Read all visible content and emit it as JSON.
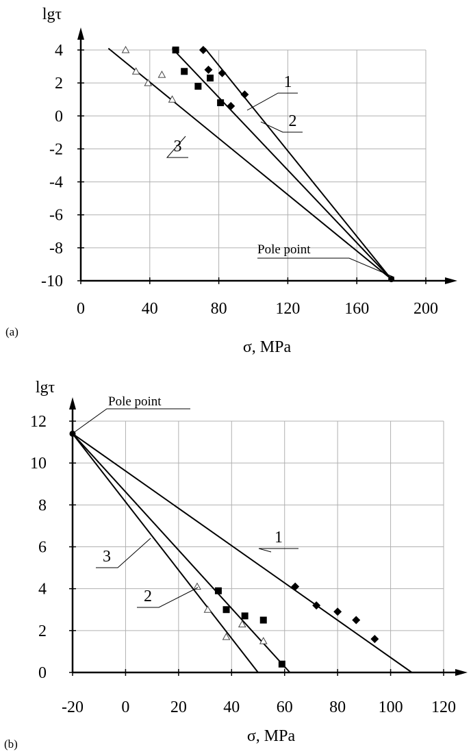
{
  "chart_data": [
    {
      "type": "scatter",
      "panel_label": "(a)",
      "xlabel": "σ, MPa",
      "ylabel": "lgτ",
      "xlim": [
        0,
        200
      ],
      "ylim": [
        -10,
        4
      ],
      "x_ticks": [
        0,
        40,
        80,
        120,
        160,
        200
      ],
      "y_ticks": [
        -10,
        -8,
        -6,
        -4,
        -2,
        0,
        2,
        4
      ],
      "grid": true,
      "series": [
        {
          "name": "1",
          "marker": "diamond",
          "points": [
            [
              71,
              4.0
            ],
            [
              74,
              2.8
            ],
            [
              82,
              2.6
            ],
            [
              87,
              0.6
            ],
            [
              95,
              1.3
            ]
          ],
          "line": [
            [
              72,
              4.1
            ],
            [
              180,
              -9.9
            ]
          ]
        },
        {
          "name": "2",
          "marker": "square",
          "points": [
            [
              55,
              4.0
            ],
            [
              60,
              2.7
            ],
            [
              68,
              1.8
            ],
            [
              75,
              2.3
            ],
            [
              81,
              0.8
            ]
          ],
          "line": [
            [
              53,
              4.1
            ],
            [
              180,
              -9.9
            ]
          ]
        },
        {
          "name": "3",
          "marker": "triangle",
          "points": [
            [
              26,
              4.0
            ],
            [
              32,
              2.7
            ],
            [
              39,
              2.0
            ],
            [
              47,
              2.5
            ],
            [
              53,
              1.0
            ]
          ],
          "line": [
            [
              16,
              4.1
            ],
            [
              180,
              -9.9
            ]
          ]
        }
      ],
      "pole_point": {
        "label": "Pole point",
        "x": 180,
        "y": -9.9
      }
    },
    {
      "type": "scatter",
      "panel_label": "(b)",
      "xlabel": "σ, MPa",
      "ylabel": "lgτ",
      "xlim": [
        -20,
        120
      ],
      "ylim": [
        0,
        12
      ],
      "x_ticks": [
        -20,
        0,
        20,
        40,
        60,
        80,
        100,
        120
      ],
      "y_ticks": [
        0,
        2,
        4,
        6,
        8,
        10,
        12
      ],
      "grid": true,
      "series": [
        {
          "name": "1",
          "marker": "diamond",
          "points": [
            [
              64,
              4.1
            ],
            [
              72,
              3.2
            ],
            [
              80,
              2.9
            ],
            [
              87,
              2.5
            ],
            [
              94,
              1.6
            ]
          ],
          "line": [
            [
              -20,
              11.4
            ],
            [
              108,
              0.0
            ]
          ]
        },
        {
          "name": "2",
          "marker": "square",
          "points": [
            [
              35,
              3.9
            ],
            [
              38,
              3.0
            ],
            [
              45,
              2.7
            ],
            [
              52,
              2.5
            ],
            [
              59,
              0.4
            ]
          ],
          "line": [
            [
              -20,
              11.4
            ],
            [
              62,
              0.0
            ]
          ]
        },
        {
          "name": "3",
          "marker": "triangle",
          "points": [
            [
              27,
              4.1
            ],
            [
              31,
              3.0
            ],
            [
              38,
              1.7
            ],
            [
              44,
              2.3
            ],
            [
              52,
              1.5
            ]
          ],
          "line": [
            [
              -20,
              11.4
            ],
            [
              50,
              0.0
            ]
          ]
        }
      ],
      "pole_point": {
        "label": "Pole point",
        "x": -20,
        "y": 11.4
      }
    }
  ]
}
